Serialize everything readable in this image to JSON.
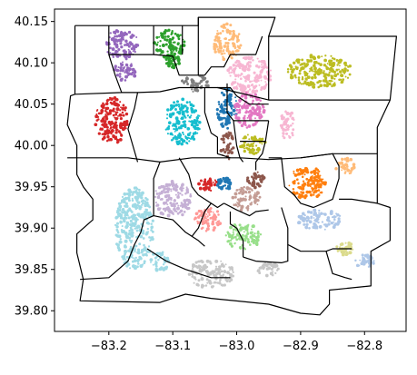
{
  "chart_data": {
    "type": "scatter",
    "title": "",
    "xlabel": "",
    "ylabel": "",
    "xlim": [
      -83.285,
      -82.735
    ],
    "ylim": [
      39.775,
      40.165
    ],
    "x_ticks": [
      -83.2,
      -83.1,
      -83.0,
      -82.9,
      -82.8
    ],
    "x_tick_labels": [
      "−83.2",
      "−83.1",
      "−83.0",
      "−82.9",
      "−82.8"
    ],
    "y_ticks": [
      39.8,
      39.85,
      39.9,
      39.95,
      40.0,
      40.05,
      40.1,
      40.15
    ],
    "y_tick_labels": [
      "39.80",
      "39.85",
      "39.90",
      "39.95",
      "40.00",
      "40.05",
      "40.10",
      "40.15"
    ],
    "grid": false,
    "legend": "none",
    "boundaries": [
      [
        [
          -83.253,
          40.145
        ],
        [
          -83.06,
          40.145
        ],
        [
          -83.06,
          40.155
        ],
        [
          -82.94,
          40.155
        ],
        [
          -82.95,
          40.132
        ],
        [
          -82.75,
          40.132
        ],
        [
          -82.76,
          40.055
        ],
        [
          -82.78,
          40.022
        ],
        [
          -82.78,
          39.93
        ],
        [
          -82.76,
          39.925
        ],
        [
          -82.76,
          39.885
        ],
        [
          -82.79,
          39.872
        ],
        [
          -82.79,
          39.83
        ],
        [
          -82.855,
          39.825
        ],
        [
          -82.855,
          39.808
        ],
        [
          -82.87,
          39.795
        ],
        [
          -82.9,
          39.797
        ],
        [
          -82.95,
          39.808
        ],
        [
          -83.04,
          39.815
        ],
        [
          -83.08,
          39.82
        ],
        [
          -83.12,
          39.81
        ],
        [
          -83.245,
          39.812
        ],
        [
          -83.24,
          39.838
        ],
        [
          -83.25,
          39.87
        ],
        [
          -83.25,
          39.893
        ],
        [
          -83.225,
          39.91
        ],
        [
          -83.225,
          39.935
        ],
        [
          -83.24,
          39.95
        ],
        [
          -83.25,
          39.965
        ],
        [
          -83.25,
          40.0
        ],
        [
          -83.265,
          40.025
        ],
        [
          -83.26,
          40.06
        ],
        [
          -83.253,
          40.062
        ],
        [
          -83.253,
          40.145
        ]
      ],
      [
        [
          -83.253,
          40.062
        ],
        [
          -83.18,
          40.064
        ],
        [
          -83.19,
          40.085
        ],
        [
          -83.2,
          40.11
        ],
        [
          -83.2,
          40.145
        ]
      ],
      [
        [
          -83.2,
          40.11
        ],
        [
          -83.13,
          40.11
        ],
        [
          -83.13,
          40.145
        ]
      ],
      [
        [
          -83.13,
          40.11
        ],
        [
          -83.1,
          40.108
        ],
        [
          -83.09,
          40.085
        ],
        [
          -83.05,
          40.085
        ],
        [
          -83.04,
          40.095
        ],
        [
          -83.02,
          40.095
        ],
        [
          -83.01,
          40.11
        ],
        [
          -82.97,
          40.11
        ],
        [
          -82.96,
          40.132
        ]
      ],
      [
        [
          -83.085,
          40.145
        ],
        [
          -83.085,
          40.11
        ]
      ],
      [
        [
          -83.06,
          40.155
        ],
        [
          -83.06,
          40.11
        ],
        [
          -83.06,
          40.085
        ]
      ],
      [
        [
          -82.95,
          40.132
        ],
        [
          -82.95,
          40.11
        ],
        [
          -82.95,
          40.055
        ]
      ],
      [
        [
          -83.18,
          40.064
        ],
        [
          -83.155,
          40.064
        ],
        [
          -83.12,
          40.065
        ],
        [
          -83.09,
          40.07
        ],
        [
          -83.05,
          40.07
        ],
        [
          -83.03,
          40.07
        ],
        [
          -82.95,
          40.055
        ],
        [
          -82.76,
          40.055
        ]
      ],
      [
        [
          -83.155,
          40.064
        ],
        [
          -83.16,
          40.045
        ],
        [
          -83.17,
          40.02
        ],
        [
          -83.155,
          39.98
        ]
      ],
      [
        [
          -83.05,
          40.07
        ],
        [
          -83.05,
          40.04
        ],
        [
          -83.04,
          40.015
        ],
        [
          -83.03,
          40.01
        ],
        [
          -83.03,
          39.99
        ],
        [
          -83.01,
          39.985
        ]
      ],
      [
        [
          -83.03,
          40.07
        ],
        [
          -83.01,
          40.07
        ],
        [
          -83.0,
          40.06
        ],
        [
          -82.98,
          40.05
        ],
        [
          -82.95,
          40.05
        ]
      ],
      [
        [
          -83.015,
          40.075
        ],
        [
          -83.015,
          40.04
        ],
        [
          -83.005,
          40.03
        ],
        [
          -82.99,
          40.03
        ],
        [
          -82.95,
          40.03
        ]
      ],
      [
        [
          -83.005,
          40.03
        ],
        [
          -83.0,
          40.0
        ],
        [
          -82.995,
          39.985
        ],
        [
          -82.99,
          39.98
        ]
      ],
      [
        [
          -82.995,
          40.005
        ],
        [
          -82.955,
          40.005
        ],
        [
          -82.95,
          40.03
        ]
      ],
      [
        [
          -82.955,
          40.005
        ],
        [
          -82.96,
          39.99
        ],
        [
          -82.97,
          39.98
        ],
        [
          -82.97,
          39.97
        ]
      ],
      [
        [
          -83.265,
          39.985
        ],
        [
          -83.17,
          39.985
        ],
        [
          -83.12,
          39.98
        ],
        [
          -83.07,
          39.985
        ],
        [
          -83.03,
          39.985
        ],
        [
          -83.01,
          39.985
        ],
        [
          -82.995,
          39.985
        ],
        [
          -82.95,
          39.983
        ],
        [
          -82.9,
          39.985
        ],
        [
          -82.85,
          39.99
        ],
        [
          -82.78,
          39.99
        ]
      ],
      [
        [
          -83.09,
          39.985
        ],
        [
          -83.075,
          39.965
        ],
        [
          -83.07,
          39.95
        ],
        [
          -83.06,
          39.94
        ]
      ],
      [
        [
          -83.12,
          39.98
        ],
        [
          -83.13,
          39.96
        ],
        [
          -83.13,
          39.935
        ],
        [
          -83.13,
          39.915
        ],
        [
          -83.1,
          39.91
        ],
        [
          -83.08,
          39.895
        ],
        [
          -83.06,
          39.885
        ],
        [
          -83.05,
          39.878
        ]
      ],
      [
        [
          -83.13,
          39.915
        ],
        [
          -83.145,
          39.91
        ],
        [
          -83.15,
          39.895
        ],
        [
          -83.16,
          39.88
        ],
        [
          -83.17,
          39.86
        ]
      ],
      [
        [
          -83.06,
          39.94
        ],
        [
          -83.04,
          39.93
        ],
        [
          -83.03,
          39.925
        ],
        [
          -83.02,
          39.93
        ]
      ],
      [
        [
          -83.04,
          39.93
        ],
        [
          -83.05,
          39.92
        ],
        [
          -83.06,
          39.9
        ],
        [
          -83.07,
          39.89
        ]
      ],
      [
        [
          -83.02,
          39.93
        ],
        [
          -83.0,
          39.922
        ],
        [
          -82.98,
          39.915
        ],
        [
          -82.97,
          39.92
        ],
        [
          -82.95,
          39.922
        ]
      ],
      [
        [
          -83.01,
          39.92
        ],
        [
          -83.01,
          39.905
        ],
        [
          -83.0,
          39.9
        ],
        [
          -82.99,
          39.885
        ],
        [
          -82.99,
          39.865
        ]
      ],
      [
        [
          -82.99,
          39.865
        ],
        [
          -82.97,
          39.86
        ],
        [
          -82.93,
          39.858
        ],
        [
          -82.92,
          39.86
        ],
        [
          -82.92,
          39.88
        ]
      ],
      [
        [
          -82.95,
          39.985
        ],
        [
          -82.93,
          39.985
        ],
        [
          -82.925,
          39.95
        ],
        [
          -82.91,
          39.94
        ],
        [
          -82.9,
          39.93
        ],
        [
          -82.88,
          39.925
        ]
      ],
      [
        [
          -82.9,
          39.985
        ],
        [
          -82.85,
          39.99
        ],
        [
          -82.84,
          39.975
        ],
        [
          -82.84,
          39.96
        ],
        [
          -82.85,
          39.935
        ],
        [
          -82.88,
          39.925
        ]
      ],
      [
        [
          -82.93,
          39.925
        ],
        [
          -82.92,
          39.9
        ],
        [
          -82.92,
          39.88
        ],
        [
          -82.9,
          39.872
        ],
        [
          -82.86,
          39.872
        ],
        [
          -82.85,
          39.875
        ],
        [
          -82.82,
          39.875
        ]
      ],
      [
        [
          -82.84,
          39.935
        ],
        [
          -82.82,
          39.935
        ],
        [
          -82.78,
          39.93
        ]
      ],
      [
        [
          -82.86,
          39.872
        ],
        [
          -82.85,
          39.845
        ],
        [
          -82.83,
          39.84
        ],
        [
          -82.82,
          39.838
        ]
      ],
      [
        [
          -83.14,
          39.875
        ],
        [
          -83.11,
          39.86
        ],
        [
          -83.08,
          39.85
        ],
        [
          -83.04,
          39.84
        ],
        [
          -83.01,
          39.84
        ]
      ],
      [
        [
          -83.17,
          39.86
        ],
        [
          -83.2,
          39.84
        ],
        [
          -83.245,
          39.838
        ]
      ]
    ],
    "series": [
      {
        "color": "#9467bd",
        "blobs": [
          [
            -83.18,
            40.122,
            0.028,
            0.018
          ],
          [
            -83.175,
            40.09,
            0.018,
            0.012
          ]
        ]
      },
      {
        "color": "#2ca02c",
        "blobs": [
          [
            -83.105,
            40.122,
            0.024,
            0.018
          ],
          [
            -83.1,
            40.102,
            0.012,
            0.008
          ]
        ]
      },
      {
        "color": "#ffbb78",
        "blobs": [
          [
            -83.015,
            40.125,
            0.022,
            0.022
          ],
          [
            -82.83,
            39.975,
            0.016,
            0.01
          ]
        ]
      },
      {
        "color": "#bcbd22",
        "blobs": [
          [
            -82.87,
            40.09,
            0.05,
            0.02
          ],
          [
            -82.975,
            40.002,
            0.02,
            0.012
          ]
        ]
      },
      {
        "color": "#7f7f7f",
        "blobs": [
          [
            -83.065,
            40.075,
            0.022,
            0.01
          ]
        ]
      },
      {
        "color": "#f7b6d2",
        "blobs": [
          [
            -82.98,
            40.085,
            0.035,
            0.022
          ],
          [
            -82.92,
            40.025,
            0.012,
            0.018
          ]
        ]
      },
      {
        "color": "#1f77b4",
        "blobs": [
          [
            -83.015,
            40.045,
            0.016,
            0.025
          ],
          [
            -83.02,
            39.953,
            0.012,
            0.008
          ]
        ]
      },
      {
        "color": "#d62728",
        "blobs": [
          [
            -83.195,
            40.03,
            0.026,
            0.028
          ],
          [
            -83.045,
            39.953,
            0.015,
            0.008
          ]
        ]
      },
      {
        "color": "#17becf",
        "blobs": [
          [
            -83.085,
            40.028,
            0.028,
            0.028
          ]
        ]
      },
      {
        "color": "#e377c2",
        "blobs": [
          [
            -82.98,
            40.042,
            0.024,
            0.022
          ]
        ]
      },
      {
        "color": "#8c564b",
        "blobs": [
          [
            -83.015,
            40.0,
            0.01,
            0.018
          ],
          [
            -82.97,
            39.958,
            0.015,
            0.01
          ]
        ]
      },
      {
        "color": "#ff7f0e",
        "blobs": [
          [
            -82.89,
            39.955,
            0.03,
            0.02
          ]
        ]
      },
      {
        "color": "#c49c94",
        "blobs": [
          [
            -82.985,
            39.935,
            0.022,
            0.015
          ]
        ]
      },
      {
        "color": "#aec7e8",
        "blobs": [
          [
            -82.87,
            39.91,
            0.035,
            0.012
          ],
          [
            -82.8,
            39.86,
            0.015,
            0.008
          ]
        ]
      },
      {
        "color": "#c5b0d5",
        "blobs": [
          [
            -83.1,
            39.935,
            0.03,
            0.022
          ]
        ]
      },
      {
        "color": "#ff9896",
        "blobs": [
          [
            -83.045,
            39.91,
            0.022,
            0.015
          ]
        ]
      },
      {
        "color": "#9edae5",
        "blobs": [
          [
            -83.16,
            39.9,
            0.03,
            0.05
          ],
          [
            -83.12,
            39.86,
            0.015,
            0.012
          ]
        ]
      },
      {
        "color": "#98df8a",
        "blobs": [
          [
            -82.99,
            39.89,
            0.028,
            0.016
          ]
        ]
      },
      {
        "color": "#dbdb8d",
        "blobs": [
          [
            -82.83,
            39.875,
            0.014,
            0.008
          ]
        ]
      },
      {
        "color": "#c7c7c7",
        "blobs": [
          [
            -83.04,
            39.845,
            0.035,
            0.018
          ],
          [
            -82.95,
            39.85,
            0.02,
            0.008
          ]
        ]
      }
    ]
  }
}
